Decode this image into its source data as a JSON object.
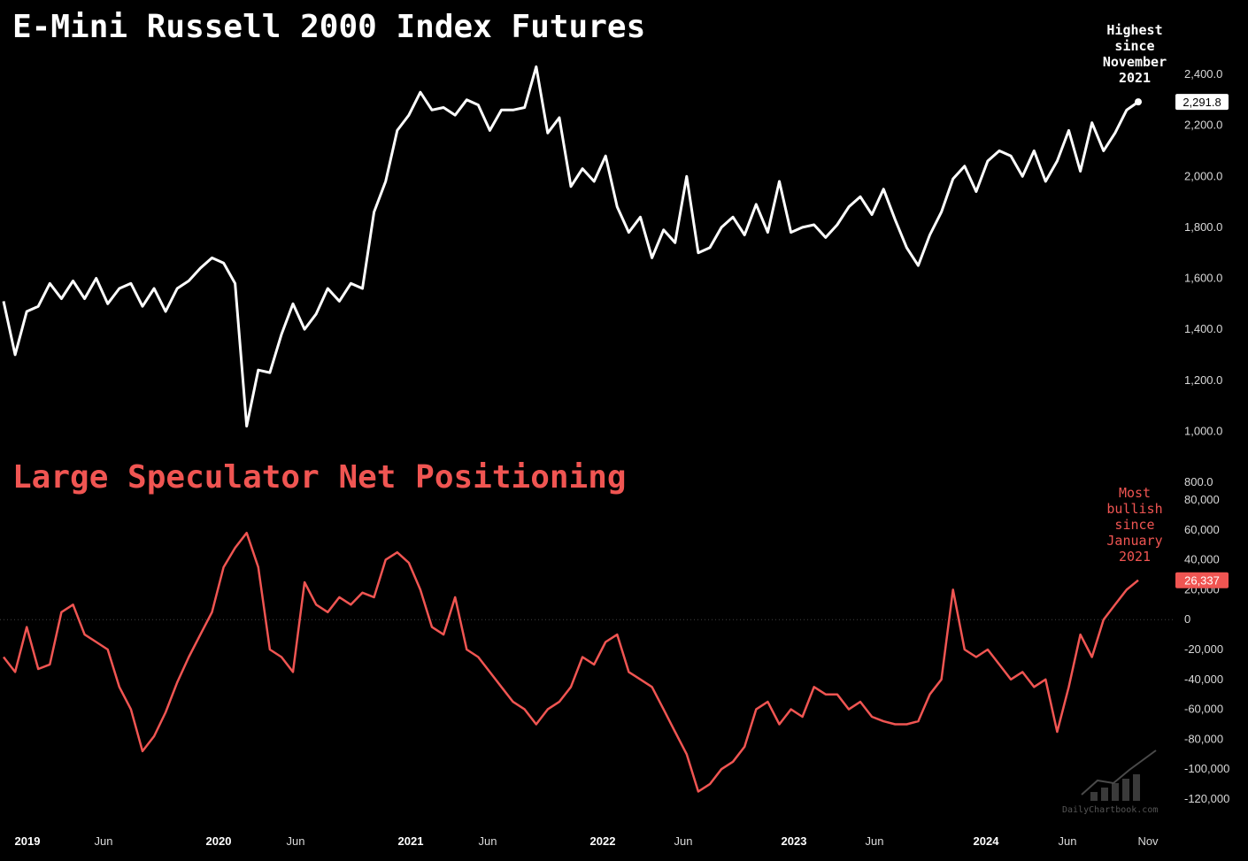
{
  "titles": {
    "top": "E-Mini Russell 2000 Index Futures",
    "bottom": "Large Speculator Net Positioning"
  },
  "annotations": {
    "top": [
      "Highest",
      "since",
      "November",
      "2021"
    ],
    "bottom": [
      "Most",
      "bullish",
      "since",
      "January",
      "2021"
    ]
  },
  "watermark": "DailyChartbook.com",
  "colors": {
    "price": "#ffffff",
    "positioning": "#f05552",
    "background": "#000000"
  },
  "chart_data": [
    {
      "type": "line",
      "title": "E-Mini Russell 2000 Index Futures",
      "ylim": [
        800,
        2400
      ],
      "yticks": [
        "800.0",
        "1,000.0",
        "1,200.0",
        "1,400.0",
        "1,600.0",
        "1,800.0",
        "2,000.0",
        "2,200.0",
        "2,400.0"
      ],
      "last_value_label": "2,291.8",
      "x_start": "2019-01",
      "x_end": "2024-10",
      "series": [
        {
          "values": [
            1510,
            1300,
            1470,
            1490,
            1580,
            1520,
            1590,
            1520,
            1600,
            1500,
            1560,
            1580,
            1490,
            1560,
            1470,
            1560,
            1590,
            1640,
            1680,
            1660,
            1580,
            1020,
            1240,
            1230,
            1380,
            1500,
            1400,
            1460,
            1560,
            1510,
            1580,
            1560,
            1860,
            1980,
            2180,
            2240,
            2330,
            2260,
            2270,
            2240,
            2300,
            2280,
            2180,
            2260,
            2260,
            2270,
            2430,
            2170,
            2230,
            1960,
            2030,
            1980,
            2080,
            1880,
            1780,
            1840,
            1680,
            1790,
            1740,
            2000,
            1700,
            1720,
            1800,
            1840,
            1770,
            1890,
            1780,
            1980,
            1780,
            1800,
            1810,
            1760,
            1810,
            1880,
            1920,
            1850,
            1950,
            1830,
            1720,
            1650,
            1770,
            1860,
            1990,
            2040,
            1940,
            2060,
            2100,
            2080,
            2000,
            2100,
            1980,
            2060,
            2180,
            2020,
            2210,
            2100,
            2170,
            2260,
            2292
          ]
        }
      ]
    },
    {
      "type": "line",
      "title": "Large Speculator Net Positioning",
      "ylim": [
        -120000,
        80000
      ],
      "yticks": [
        "-120,000",
        "-100,000",
        "-80,000",
        "-60,000",
        "-40,000",
        "-20,000",
        "0",
        "20,000",
        "40,000",
        "60,000",
        "80,000"
      ],
      "last_value_label": "26,337",
      "x_start": "2019-01",
      "x_end": "2024-10",
      "series": [
        {
          "values": [
            -25000,
            -35000,
            -5000,
            -33000,
            -30000,
            5000,
            10000,
            -10000,
            -15000,
            -20000,
            -45000,
            -60000,
            -88000,
            -78000,
            -62000,
            -42000,
            -25000,
            -10000,
            5000,
            35000,
            48000,
            58000,
            35000,
            -20000,
            -25000,
            -35000,
            25000,
            10000,
            5000,
            15000,
            10000,
            18000,
            15000,
            40000,
            45000,
            38000,
            20000,
            -5000,
            -10000,
            15000,
            -20000,
            -25000,
            -35000,
            -45000,
            -55000,
            -60000,
            -70000,
            -60000,
            -55000,
            -45000,
            -25000,
            -30000,
            -15000,
            -10000,
            -35000,
            -40000,
            -45000,
            -60000,
            -75000,
            -90000,
            -115000,
            -110000,
            -100000,
            -95000,
            -85000,
            -60000,
            -55000,
            -70000,
            -60000,
            -65000,
            -45000,
            -50000,
            -50000,
            -60000,
            -55000,
            -65000,
            -68000,
            -70000,
            -70000,
            -68000,
            -50000,
            -40000,
            20000,
            -20000,
            -25000,
            -20000,
            -30000,
            -40000,
            -35000,
            -45000,
            -40000,
            -75000,
            -45000,
            -10000,
            -25000,
            0,
            10000,
            20000,
            26337
          ]
        }
      ]
    }
  ],
  "x_axis": {
    "labels": [
      {
        "text": "2019",
        "year": true
      },
      {
        "text": "Jun",
        "year": false
      },
      {
        "text": "2020",
        "year": true
      },
      {
        "text": "Jun",
        "year": false
      },
      {
        "text": "2021",
        "year": true
      },
      {
        "text": "Jun",
        "year": false
      },
      {
        "text": "2022",
        "year": true
      },
      {
        "text": "Jun",
        "year": false
      },
      {
        "text": "2023",
        "year": true
      },
      {
        "text": "Jun",
        "year": false
      },
      {
        "text": "2024",
        "year": true
      },
      {
        "text": "Jun",
        "year": false
      },
      {
        "text": "Nov",
        "year": false
      }
    ]
  }
}
